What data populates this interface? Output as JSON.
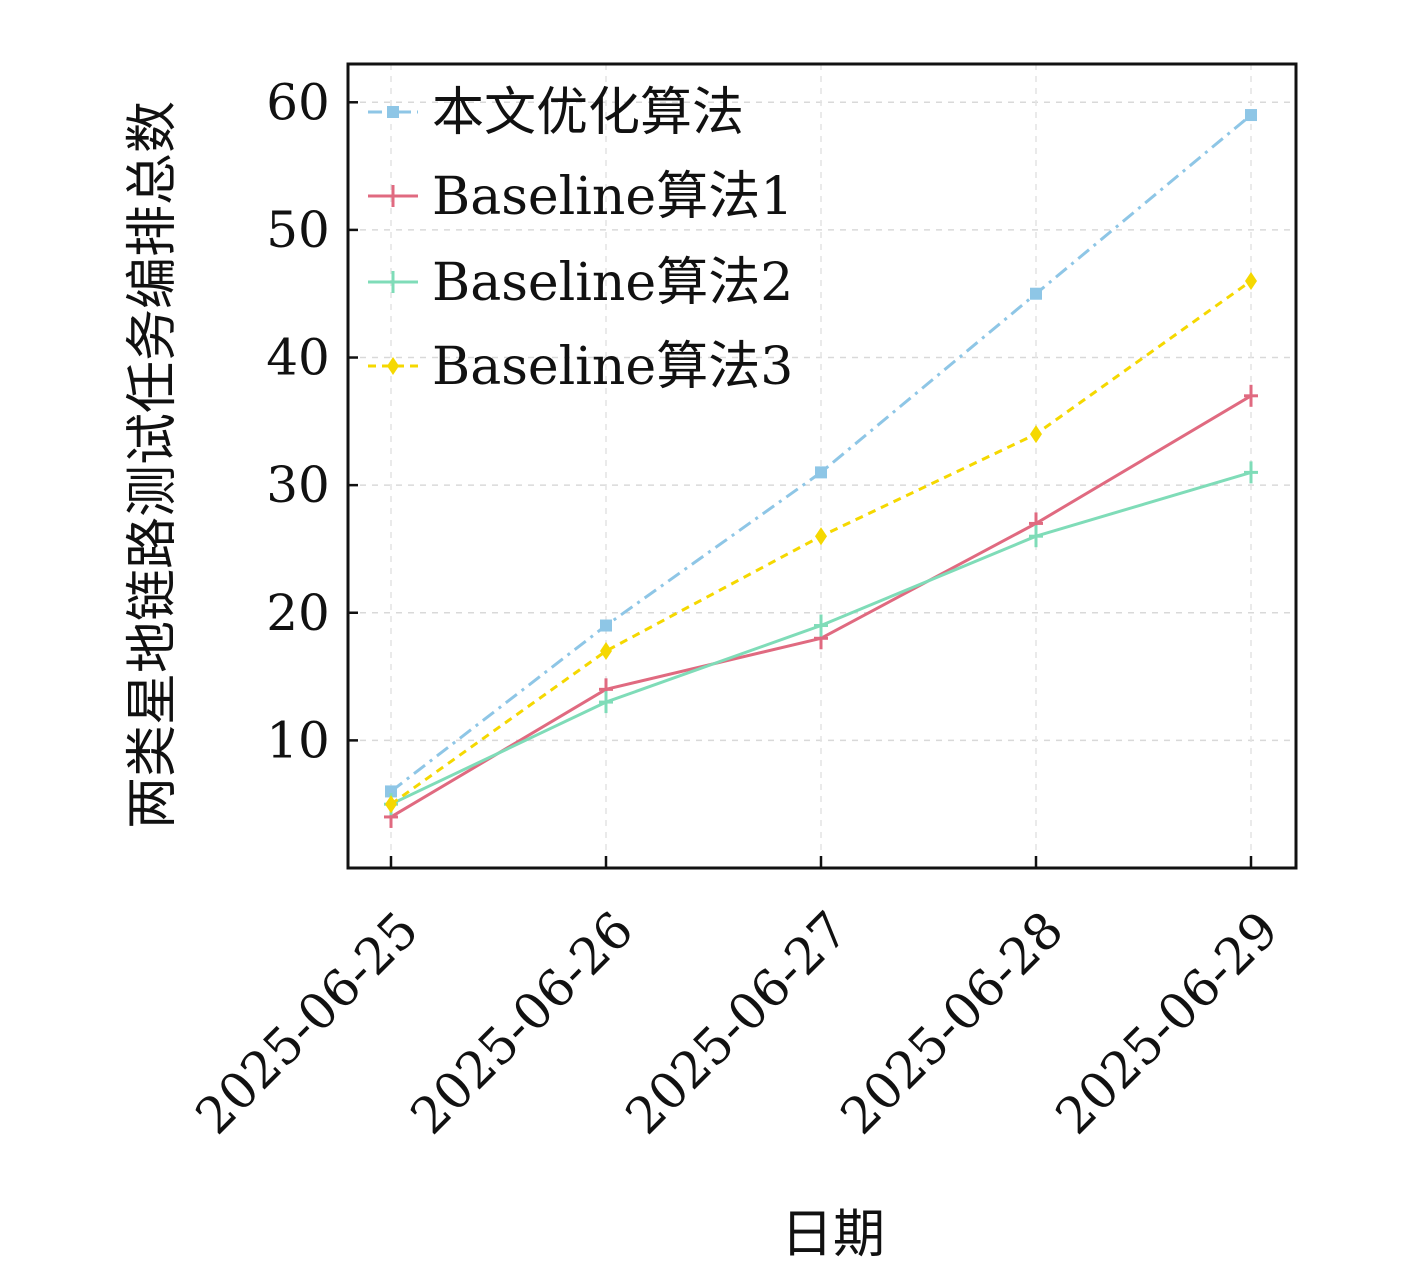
{
  "chart_data": {
    "type": "line",
    "title": "",
    "xlabel": "日期",
    "ylabel": "两类星地链路测试任务编排总数",
    "categories": [
      "2025-06-25",
      "2025-06-26",
      "2025-06-27",
      "2025-06-28",
      "2025-06-29"
    ],
    "ylim": [
      0,
      63
    ],
    "yticks": [
      10,
      20,
      30,
      40,
      50,
      60
    ],
    "grid": true,
    "legend_position": "top-left",
    "series": [
      {
        "name": "本文优化算法",
        "values": [
          6,
          19,
          31,
          45,
          59
        ],
        "color": "#8ec6e6",
        "line_style": "dashdot",
        "marker": "square"
      },
      {
        "name": "Baseline算法1",
        "values": [
          4,
          14,
          18,
          27,
          37
        ],
        "color": "#e06a80",
        "line_style": "solid",
        "marker": "plus"
      },
      {
        "name": "Baseline算法2",
        "values": [
          5,
          13,
          19,
          26,
          31
        ],
        "color": "#7fdcb8",
        "line_style": "solid",
        "marker": "plus"
      },
      {
        "name": "Baseline算法3",
        "values": [
          5,
          17,
          26,
          34,
          46
        ],
        "color": "#f5d800",
        "line_style": "dashed",
        "marker": "diamond"
      }
    ]
  }
}
